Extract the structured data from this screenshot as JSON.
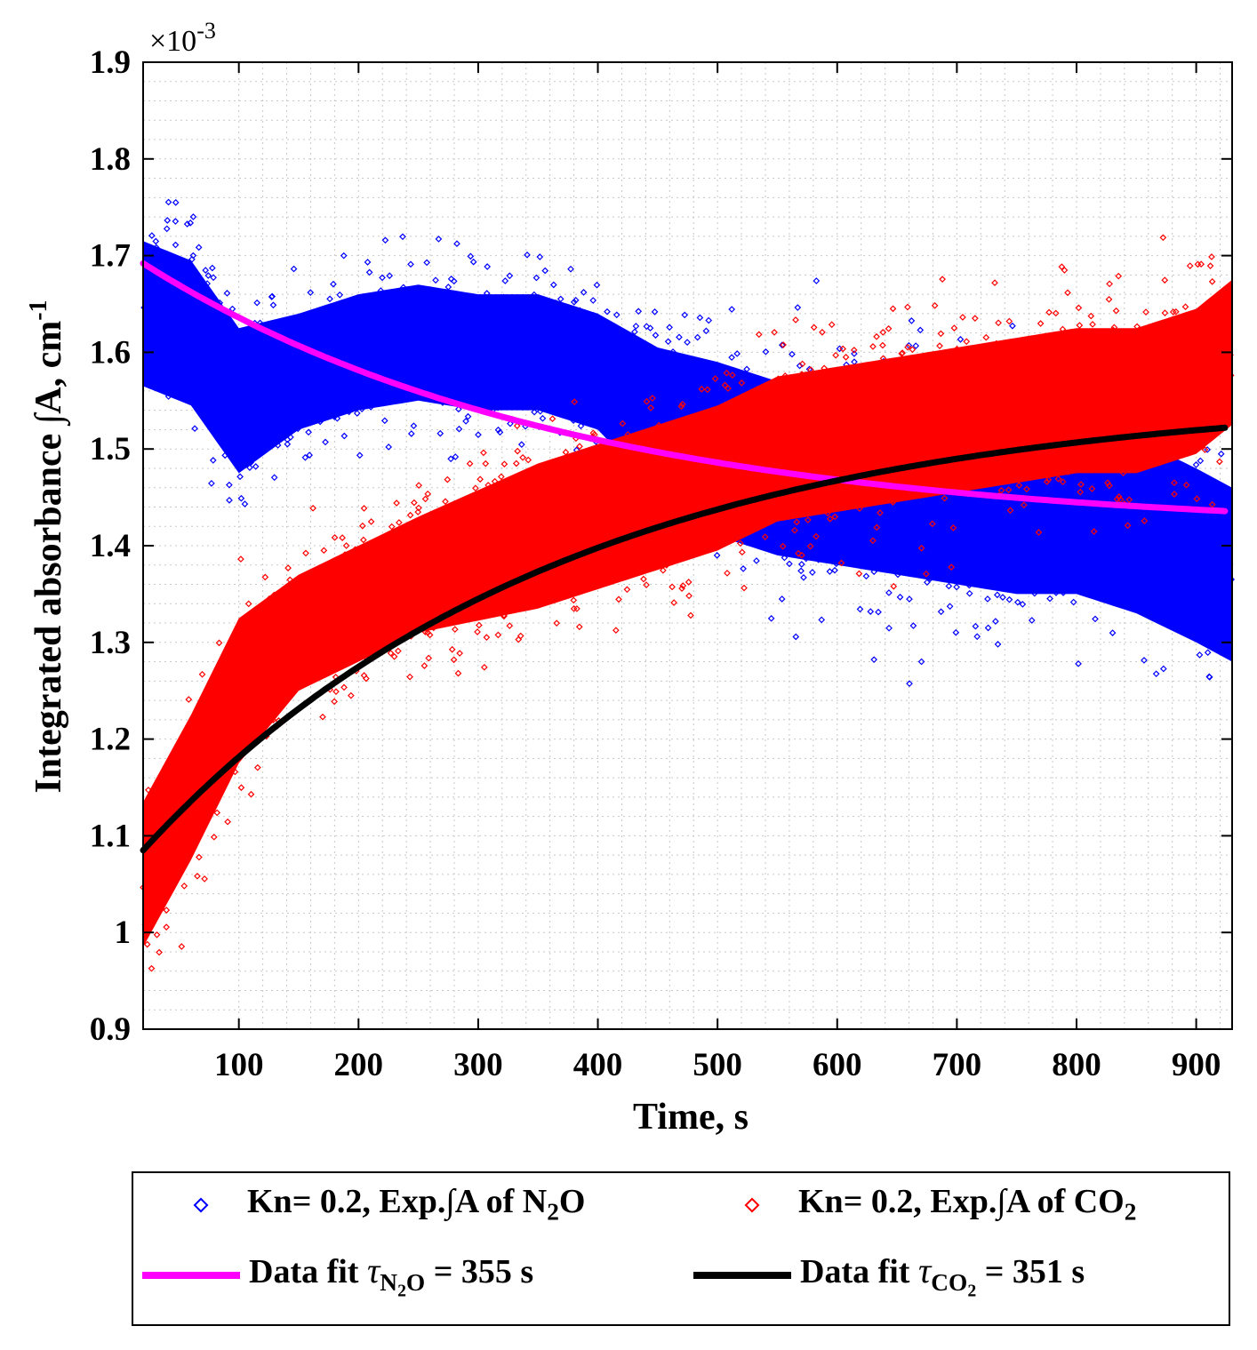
{
  "chart_data": {
    "type": "scatter",
    "title": "",
    "xlabel": "Time, s",
    "ylabel": "Integrated absorbance ∫A, cm",
    "ylabel_superscript": "-1",
    "y_exponent_label": "×10",
    "y_exponent_power": "-3",
    "xlim": [
      20,
      930
    ],
    "ylim": [
      0.9,
      1.9
    ],
    "x_ticks": [
      100,
      200,
      300,
      400,
      500,
      600,
      700,
      800,
      900
    ],
    "x_tick_labels": [
      "100",
      "200",
      "300",
      "400",
      "500",
      "600",
      "700",
      "800",
      "900"
    ],
    "y_ticks": [
      0.9,
      1.0,
      1.1,
      1.2,
      1.3,
      1.4,
      1.5,
      1.6,
      1.7,
      1.8,
      1.9
    ],
    "y_tick_labels": [
      "0.9",
      "1",
      "1.1",
      "1.2",
      "1.3",
      "1.4",
      "1.5",
      "1.6",
      "1.7",
      "1.8",
      "1.9"
    ],
    "grid": true,
    "series": [
      {
        "name": "Kn= 0.2, Exp.∫A of N2O",
        "kind": "scatter",
        "color": "#0000ff",
        "envelope": {
          "t": [
            20,
            60,
            100,
            150,
            200,
            250,
            300,
            350,
            400,
            450,
            500,
            550,
            600,
            650,
            700,
            750,
            800,
            850,
            900,
            930
          ],
          "center": [
            1.64,
            1.62,
            1.55,
            1.58,
            1.6,
            1.61,
            1.6,
            1.6,
            1.58,
            1.53,
            1.5,
            1.48,
            1.47,
            1.46,
            1.45,
            1.44,
            1.44,
            1.42,
            1.39,
            1.37
          ],
          "spread": [
            0.1,
            0.1,
            0.1,
            0.08,
            0.08,
            0.08,
            0.08,
            0.08,
            0.08,
            0.1,
            0.12,
            0.12,
            0.12,
            0.12,
            0.12,
            0.12,
            0.12,
            0.12,
            0.12,
            0.12
          ]
        }
      },
      {
        "name": "Kn= 0.2, Exp.∫A of CO2",
        "kind": "scatter",
        "color": "#ff0000",
        "envelope": {
          "t": [
            20,
            60,
            100,
            150,
            200,
            250,
            300,
            350,
            400,
            450,
            500,
            550,
            600,
            650,
            700,
            750,
            800,
            850,
            900,
            930
          ],
          "center": [
            1.06,
            1.15,
            1.25,
            1.31,
            1.34,
            1.37,
            1.39,
            1.41,
            1.43,
            1.45,
            1.47,
            1.5,
            1.51,
            1.52,
            1.53,
            1.54,
            1.55,
            1.55,
            1.57,
            1.6
          ],
          "spread": [
            0.1,
            0.1,
            0.1,
            0.08,
            0.08,
            0.08,
            0.09,
            0.1,
            0.1,
            0.1,
            0.1,
            0.1,
            0.1,
            0.1,
            0.1,
            0.1,
            0.1,
            0.1,
            0.1,
            0.1
          ]
        }
      },
      {
        "name": "Data fit τN2O = 355 s",
        "kind": "line",
        "color": "#ff00ff",
        "model": {
          "form": "A_inf + (A0 - A_inf) * exp(-(t - t0) / tau)",
          "A_inf": 1.414,
          "A0": 1.692,
          "t0": 20,
          "tau": 355
        }
      },
      {
        "name": "Data fit τCO2 = 351 s",
        "kind": "line",
        "color": "#000000",
        "model": {
          "form": "A_inf + (A0 - A_inf) * exp(-(t - t0) / tau)",
          "A_inf": 1.558,
          "A0": 1.085,
          "t0": 20,
          "tau": 351
        }
      }
    ]
  },
  "legend": {
    "entries": [
      {
        "pre": "Kn= 0.2, Exp.∫A of N",
        "sub": "2",
        "post": "O"
      },
      {
        "pre": "Kn= 0.2, Exp.∫A of CO",
        "sub": "2",
        "post": ""
      },
      {
        "pre": "Data fit ",
        "tau": "τ",
        "tau_sub": "N",
        "tau_sub_sub": "2",
        "tau_sub_post": "O",
        "post": " = 355 s"
      },
      {
        "pre": "Data fit ",
        "tau": "τ",
        "tau_sub": "CO",
        "tau_sub_sub": "2",
        "tau_sub_post": "",
        "post": " = 351 s"
      }
    ]
  }
}
